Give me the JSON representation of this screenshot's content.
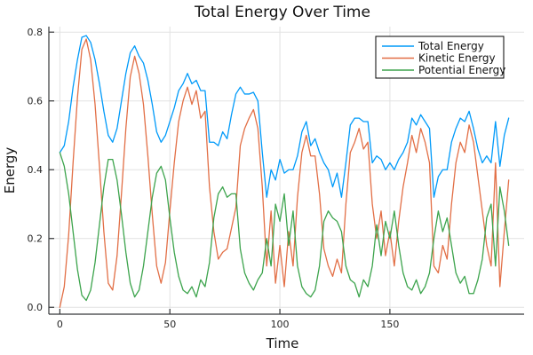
{
  "chart_data": {
    "type": "line",
    "title": "Total Energy Over Time",
    "xlabel": "Time",
    "ylabel": "Energy",
    "xlim": [
      -5,
      211
    ],
    "ylim": [
      -0.02,
      0.816
    ],
    "grid": true,
    "legend_position": "top-right",
    "x_ticks": [
      0,
      50,
      100,
      150
    ],
    "x_tick_labels": [
      "0",
      "50",
      "100",
      "150"
    ],
    "y_ticks": [
      0.0,
      0.2,
      0.4,
      0.6,
      0.8
    ],
    "y_tick_labels": [
      "0.0",
      "0.2",
      "0.4",
      "0.6",
      "0.8"
    ],
    "x": [
      0,
      2,
      4,
      6,
      8,
      10,
      12,
      14,
      16,
      18,
      20,
      22,
      24,
      26,
      28,
      30,
      32,
      34,
      36,
      38,
      40,
      42,
      44,
      46,
      48,
      50,
      52,
      54,
      56,
      58,
      60,
      62,
      64,
      66,
      68,
      70,
      72,
      74,
      76,
      78,
      80,
      82,
      84,
      86,
      88,
      90,
      92,
      94,
      96,
      98,
      100,
      102,
      104,
      106,
      108,
      110,
      112,
      114,
      116,
      118,
      120,
      122,
      124,
      126,
      128,
      130,
      132,
      134,
      136,
      138,
      140,
      142,
      144,
      146,
      148,
      150,
      152,
      154,
      156,
      158,
      160,
      162,
      164,
      166,
      168,
      170,
      172,
      174,
      176,
      178,
      180,
      182,
      184,
      186,
      188,
      190,
      192,
      194,
      196,
      198,
      200,
      202,
      204
    ],
    "series": [
      {
        "name": "Total Energy",
        "color": "#009af9",
        "values": [
          0.45,
          0.47,
          0.54,
          0.64,
          0.72,
          0.785,
          0.79,
          0.77,
          0.72,
          0.65,
          0.57,
          0.5,
          0.48,
          0.52,
          0.6,
          0.68,
          0.74,
          0.76,
          0.73,
          0.71,
          0.66,
          0.59,
          0.51,
          0.48,
          0.5,
          0.54,
          0.58,
          0.63,
          0.65,
          0.68,
          0.65,
          0.66,
          0.63,
          0.63,
          0.48,
          0.48,
          0.47,
          0.51,
          0.49,
          0.56,
          0.62,
          0.64,
          0.62,
          0.62,
          0.625,
          0.6,
          0.45,
          0.32,
          0.4,
          0.37,
          0.43,
          0.39,
          0.4,
          0.4,
          0.44,
          0.51,
          0.54,
          0.47,
          0.49,
          0.45,
          0.42,
          0.4,
          0.35,
          0.39,
          0.32,
          0.42,
          0.53,
          0.55,
          0.55,
          0.54,
          0.54,
          0.42,
          0.44,
          0.43,
          0.4,
          0.42,
          0.4,
          0.43,
          0.45,
          0.48,
          0.55,
          0.53,
          0.56,
          0.54,
          0.52,
          0.32,
          0.38,
          0.4,
          0.4,
          0.48,
          0.52,
          0.55,
          0.54,
          0.57,
          0.52,
          0.46,
          0.42,
          0.44,
          0.42,
          0.54,
          0.41,
          0.5,
          0.55
        ]
      },
      {
        "name": "Kinetic Energy",
        "color": "#e26f46",
        "values": [
          0.0,
          0.06,
          0.21,
          0.42,
          0.61,
          0.75,
          0.78,
          0.72,
          0.59,
          0.41,
          0.22,
          0.07,
          0.05,
          0.15,
          0.33,
          0.52,
          0.67,
          0.73,
          0.68,
          0.59,
          0.44,
          0.27,
          0.12,
          0.07,
          0.13,
          0.28,
          0.42,
          0.54,
          0.6,
          0.64,
          0.59,
          0.63,
          0.55,
          0.57,
          0.35,
          0.22,
          0.14,
          0.16,
          0.17,
          0.23,
          0.29,
          0.47,
          0.52,
          0.55,
          0.575,
          0.52,
          0.35,
          0.12,
          0.28,
          0.07,
          0.18,
          0.06,
          0.22,
          0.12,
          0.32,
          0.45,
          0.5,
          0.44,
          0.44,
          0.33,
          0.17,
          0.12,
          0.09,
          0.14,
          0.1,
          0.3,
          0.45,
          0.48,
          0.52,
          0.46,
          0.48,
          0.3,
          0.2,
          0.28,
          0.15,
          0.22,
          0.12,
          0.25,
          0.35,
          0.42,
          0.5,
          0.45,
          0.52,
          0.48,
          0.42,
          0.12,
          0.1,
          0.18,
          0.14,
          0.3,
          0.42,
          0.48,
          0.45,
          0.53,
          0.48,
          0.38,
          0.28,
          0.18,
          0.12,
          0.42,
          0.06,
          0.22,
          0.37
        ]
      },
      {
        "name": "Potential Energy",
        "color": "#3da44d",
        "values": [
          0.45,
          0.41,
          0.33,
          0.22,
          0.11,
          0.035,
          0.02,
          0.05,
          0.13,
          0.24,
          0.35,
          0.43,
          0.43,
          0.37,
          0.27,
          0.16,
          0.07,
          0.03,
          0.05,
          0.12,
          0.22,
          0.32,
          0.39,
          0.41,
          0.37,
          0.26,
          0.16,
          0.09,
          0.05,
          0.04,
          0.06,
          0.03,
          0.08,
          0.06,
          0.13,
          0.26,
          0.33,
          0.35,
          0.32,
          0.33,
          0.33,
          0.17,
          0.1,
          0.07,
          0.05,
          0.08,
          0.1,
          0.2,
          0.12,
          0.3,
          0.25,
          0.33,
          0.18,
          0.28,
          0.12,
          0.06,
          0.04,
          0.03,
          0.05,
          0.12,
          0.25,
          0.28,
          0.26,
          0.25,
          0.22,
          0.12,
          0.08,
          0.07,
          0.03,
          0.08,
          0.06,
          0.12,
          0.24,
          0.15,
          0.25,
          0.2,
          0.28,
          0.18,
          0.1,
          0.06,
          0.05,
          0.08,
          0.04,
          0.06,
          0.1,
          0.2,
          0.28,
          0.22,
          0.26,
          0.18,
          0.1,
          0.07,
          0.09,
          0.04,
          0.04,
          0.08,
          0.14,
          0.26,
          0.3,
          0.12,
          0.35,
          0.28,
          0.18
        ]
      }
    ],
    "style": {
      "grid_color": "#e2e2e2",
      "spine_color": "#36383a",
      "background": "#ffffff",
      "legend_border": "#000000"
    }
  }
}
